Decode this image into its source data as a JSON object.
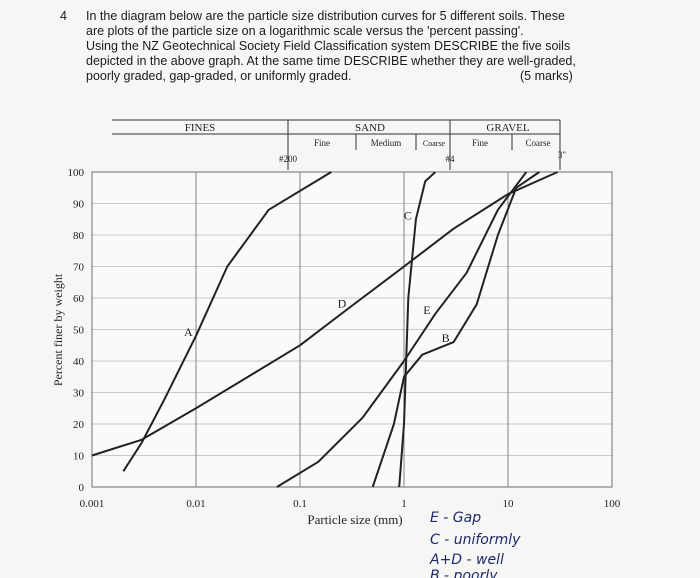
{
  "question": {
    "number": "4",
    "lines": [
      "In the diagram below are the particle size distribution curves for 5 different soils. These",
      "are plots of the particle size on a logarithmic scale versus the 'percent passing'.",
      "Using the NZ Geotechnical Society Field Classification system DESCRIBE the five soils",
      "depicted in the above graph. At the same time DESCRIBE whether they are well-graded,",
      "poorly graded, gap-graded, or uniformly graded."
    ],
    "marks": "(5 marks)"
  },
  "header": {
    "fines": "FINES",
    "sand": "SAND",
    "gravel": "GRAVEL",
    "sand_fine": "Fine",
    "sand_medium": "Medium",
    "sand_coarse": "Coarse",
    "gravel_fine": "Fine",
    "gravel_coarse": "Coarse",
    "sieve_200": "#200",
    "sieve_4": "#4",
    "sieve_3in": "3\""
  },
  "notes": [
    "E - Gap",
    "C - uniformly",
    "A+D - well",
    "B - poorly"
  ],
  "chart_data": {
    "type": "line",
    "xlabel": "Particle size (mm)",
    "ylabel": "Percent finer by weight",
    "xscale": "log",
    "xlim": [
      0.001,
      100
    ],
    "xticks": [
      0.001,
      0.01,
      0.1,
      1,
      10,
      100
    ],
    "ylim": [
      0,
      100
    ],
    "yticks": [
      0,
      10,
      20,
      30,
      40,
      50,
      60,
      70,
      80,
      90,
      100
    ],
    "grid": true,
    "series": [
      {
        "name": "A",
        "color": "#222222",
        "x": [
          0.002,
          0.003,
          0.005,
          0.01,
          0.02,
          0.05,
          0.2
        ],
        "values": [
          5,
          14,
          28,
          48,
          70,
          88,
          100
        ]
      },
      {
        "name": "B",
        "color": "#222222",
        "x": [
          0.5,
          0.8,
          1,
          1.5,
          3,
          5,
          8,
          12,
          20
        ],
        "values": [
          0,
          20,
          35,
          42,
          46,
          58,
          80,
          95,
          100
        ]
      },
      {
        "name": "C",
        "color": "#222222",
        "x": [
          0.9,
          1,
          1.1,
          1.3,
          1.6,
          2
        ],
        "values": [
          0,
          20,
          60,
          85,
          97,
          100
        ]
      },
      {
        "name": "D",
        "color": "#222222",
        "x": [
          0.001,
          0.003,
          0.01,
          0.1,
          0.3,
          1,
          3,
          10,
          30
        ],
        "values": [
          10,
          15,
          25,
          45,
          57,
          70,
          82,
          93,
          100
        ]
      },
      {
        "name": "E",
        "color": "#222222",
        "x": [
          0.06,
          0.15,
          0.4,
          1,
          2,
          4,
          8,
          15
        ],
        "values": [
          0,
          8,
          22,
          40,
          55,
          68,
          88,
          100
        ]
      }
    ]
  }
}
